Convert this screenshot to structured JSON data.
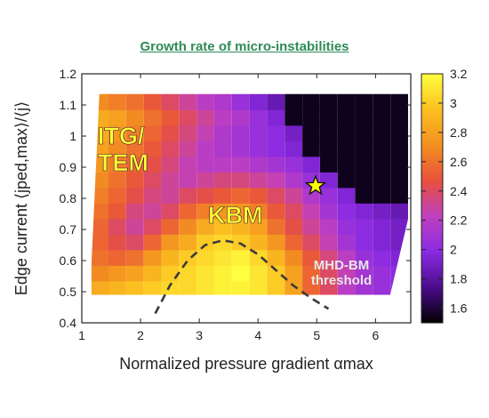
{
  "title": "Growth rate of micro-instabilities",
  "chart_data": {
    "type": "heatmap",
    "xlabel": "Normalized pressure gradient αmax",
    "ylabel": "Edge current ⟨jped,max⟩/⟨j⟩",
    "xlim": [
      1,
      6.6
    ],
    "ylim": [
      0.4,
      1.2
    ],
    "xticks": [
      "1",
      "2",
      "3",
      "4",
      "5",
      "6"
    ],
    "yticks": [
      "0.4",
      "0.5",
      "0.6",
      "0.7",
      "0.8",
      "0.9",
      "1",
      "1.1",
      "1.2"
    ],
    "colorbar": {
      "min": 1.5,
      "max": 3.2,
      "ticks": [
        "1.6",
        "1.8",
        "2",
        "2.2",
        "2.4",
        "2.6",
        "2.8",
        "3",
        "3.2"
      ],
      "colormap": [
        "#000000",
        "#4b0c8c",
        "#8a2be2",
        "#c040c0",
        "#e8503c",
        "#f39020",
        "#fbc020",
        "#ffff40"
      ]
    },
    "grid": {
      "alpha": [
        1.31,
        1.6,
        1.9,
        2.2,
        2.5,
        2.8,
        3.1,
        3.4,
        3.7,
        4.0,
        4.3,
        4.6,
        4.9,
        5.2,
        5.5,
        5.8,
        6.1,
        6.4
      ],
      "current": [
        0.51,
        0.56,
        0.61,
        0.66,
        0.71,
        0.76,
        0.81,
        0.86,
        0.91,
        0.96,
        1.01,
        1.06,
        1.11
      ],
      "values": [
        [
          2.85,
          2.9,
          2.95,
          3.0,
          3.05,
          3.05,
          3.1,
          3.15,
          3.15,
          3.1,
          3.0,
          2.8,
          2.55,
          2.4,
          2.2,
          2.1,
          2.05,
          2.0
        ],
        [
          2.7,
          2.75,
          2.8,
          2.9,
          3.0,
          3.05,
          3.1,
          3.15,
          3.2,
          3.1,
          3.0,
          2.8,
          2.55,
          2.4,
          2.25,
          2.1,
          2.05,
          2.0
        ],
        [
          2.6,
          2.55,
          2.6,
          2.75,
          2.9,
          3.0,
          3.05,
          3.1,
          3.15,
          3.05,
          2.9,
          2.7,
          2.5,
          2.35,
          2.2,
          2.05,
          2.0,
          1.95
        ],
        [
          2.55,
          2.45,
          2.4,
          2.55,
          2.75,
          2.85,
          3.0,
          3.05,
          3.0,
          2.9,
          2.75,
          2.55,
          2.4,
          2.25,
          2.1,
          2.0,
          1.95,
          1.9
        ],
        [
          2.55,
          2.4,
          2.3,
          2.4,
          2.55,
          2.7,
          2.85,
          2.95,
          2.9,
          2.8,
          2.6,
          2.45,
          2.3,
          2.2,
          2.05,
          2.0,
          1.95,
          1.9
        ],
        [
          2.6,
          2.5,
          2.35,
          2.3,
          2.4,
          2.55,
          2.65,
          2.75,
          2.75,
          2.65,
          2.5,
          2.4,
          2.25,
          2.1,
          2.0,
          1.95,
          1.9,
          1.85
        ],
        [
          2.65,
          2.55,
          2.45,
          2.35,
          2.3,
          2.4,
          2.45,
          2.5,
          2.55,
          2.5,
          2.4,
          2.3,
          2.15,
          2.05,
          1.95,
          1.55,
          1.55,
          1.55
        ],
        [
          2.7,
          2.6,
          2.5,
          2.4,
          2.3,
          2.25,
          2.3,
          2.35,
          2.35,
          2.3,
          2.25,
          2.15,
          2.05,
          1.95,
          1.55,
          1.55,
          1.55,
          1.55
        ],
        [
          2.75,
          2.65,
          2.55,
          2.45,
          2.35,
          2.25,
          2.2,
          2.2,
          2.2,
          2.15,
          2.1,
          2.05,
          1.95,
          1.55,
          1.55,
          1.55,
          1.55,
          1.55
        ],
        [
          2.8,
          2.7,
          2.6,
          2.5,
          2.4,
          2.3,
          2.2,
          2.15,
          2.1,
          2.05,
          2.0,
          1.95,
          1.55,
          1.55,
          1.55,
          1.55,
          1.55,
          1.55
        ],
        [
          2.85,
          2.75,
          2.65,
          2.55,
          2.45,
          2.35,
          2.25,
          2.15,
          2.1,
          2.05,
          2.0,
          1.9,
          1.55,
          1.55,
          1.55,
          1.55,
          1.55,
          1.55
        ],
        [
          2.85,
          2.8,
          2.7,
          2.6,
          2.5,
          2.4,
          2.3,
          2.2,
          2.15,
          2.05,
          1.95,
          1.55,
          1.55,
          1.55,
          1.55,
          1.55,
          1.55,
          1.55
        ],
        [
          2.7,
          2.65,
          2.6,
          2.5,
          2.4,
          2.3,
          2.2,
          2.15,
          2.05,
          1.95,
          1.85,
          1.55,
          1.55,
          1.55,
          1.55,
          1.55,
          1.55,
          1.55
        ]
      ]
    },
    "domain_polygon": [
      [
        1.14,
        0.49
      ],
      [
        6.25,
        0.49
      ],
      [
        6.6,
        0.77
      ],
      [
        6.6,
        1.14
      ],
      [
        1.3,
        1.14
      ]
    ],
    "threshold_curve": {
      "label": "MHD-BM threshold",
      "label_lines": [
        "MHD-BM",
        "threshold"
      ],
      "points": [
        [
          2.25,
          0.43
        ],
        [
          2.5,
          0.52
        ],
        [
          2.8,
          0.6
        ],
        [
          3.1,
          0.65
        ],
        [
          3.4,
          0.665
        ],
        [
          3.7,
          0.655
        ],
        [
          4.0,
          0.62
        ],
        [
          4.3,
          0.57
        ],
        [
          4.6,
          0.52
        ],
        [
          4.9,
          0.48
        ],
        [
          5.2,
          0.445
        ]
      ]
    },
    "regions": [
      {
        "label_lines": [
          "ITG/",
          "TEM"
        ],
        "x": 1.27,
        "y": 0.975
      },
      {
        "label_lines": [
          "KBM"
        ],
        "x": 3.15,
        "y": 0.72
      }
    ],
    "marker": {
      "symbol": "star",
      "x": 4.98,
      "y": 0.84,
      "color": "#ffff00"
    }
  }
}
